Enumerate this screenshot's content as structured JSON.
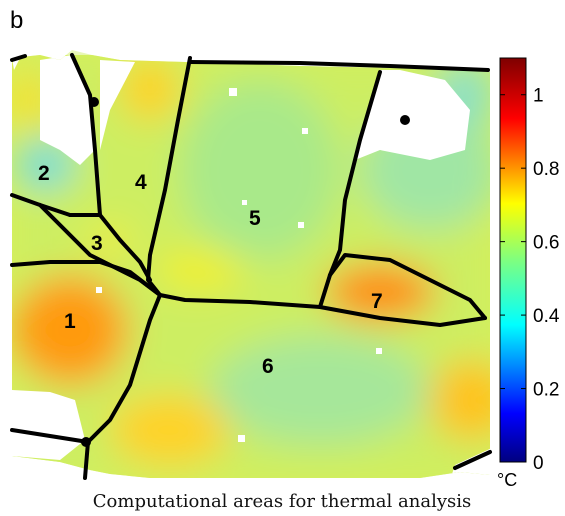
{
  "panel_label": "b",
  "caption": "Computational areas for thermal analysis",
  "chart_data": {
    "type": "heatmap",
    "title": "",
    "colorbar": {
      "unit": "°C",
      "range": [
        0,
        1.1
      ],
      "ticks": [
        0,
        0.2,
        0.4,
        0.6,
        0.8,
        1
      ],
      "tick_labels": [
        "0",
        "0.2",
        "0.4",
        "0.6",
        "0.8",
        "1"
      ],
      "colormap": "jet"
    },
    "regions": [
      {
        "label": "1",
        "approx_value": 0.85
      },
      {
        "label": "2",
        "approx_value": 0.55
      },
      {
        "label": "3",
        "approx_value": 0.68
      },
      {
        "label": "4",
        "approx_value": 0.65
      },
      {
        "label": "5",
        "approx_value": 0.62
      },
      {
        "label": "6",
        "approx_value": 0.66
      },
      {
        "label": "7",
        "approx_value": 0.85
      }
    ]
  }
}
